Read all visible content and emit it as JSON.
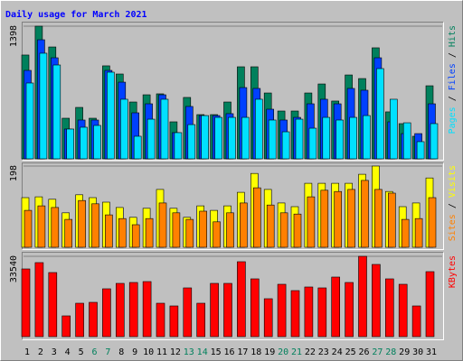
{
  "chart_data": [
    {
      "type": "bar",
      "title": "Daily usage for March 2021",
      "categories": [
        "1",
        "2",
        "3",
        "4",
        "5",
        "6",
        "7",
        "8",
        "9",
        "10",
        "11",
        "12",
        "13",
        "14",
        "15",
        "16",
        "17",
        "18",
        "19",
        "20",
        "21",
        "22",
        "23",
        "24",
        "25",
        "26",
        "27",
        "28",
        "29",
        "30",
        "31"
      ],
      "category_colors": [
        "#000000",
        "#000000",
        "#000000",
        "#000000",
        "#000000",
        "#00805c",
        "#00805c",
        "#000000",
        "#000000",
        "#000000",
        "#000000",
        "#000000",
        "#00805c",
        "#00805c",
        "#000000",
        "#000000",
        "#000000",
        "#000000",
        "#000000",
        "#00805c",
        "#00805c",
        "#000000",
        "#000000",
        "#000000",
        "#000000",
        "#000000",
        "#00805c",
        "#00805c",
        "#000000",
        "#000000",
        "#000000"
      ],
      "series": [
        {
          "name": "Hits",
          "color": "#00805c",
          "values": [
            1094,
            1398,
            1179,
            428,
            542,
            428,
            980,
            894,
            599,
            675,
            685,
            390,
            647,
            466,
            466,
            599,
            970,
            970,
            694,
            504,
            504,
            694,
            789,
            609,
            884,
            846,
            1170,
            495,
            371,
            238,
            770
          ]
        },
        {
          "name": "Files",
          "color": "#0040ff",
          "values": [
            932,
            1255,
            1065,
            314,
            409,
            409,
            932,
            808,
            485,
            580,
            675,
            276,
            552,
            456,
            456,
            476,
            751,
            742,
            523,
            409,
            437,
            580,
            628,
            580,
            742,
            723,
            1065,
            390,
            266,
            266,
            580
          ]
        },
        {
          "name": "Pages",
          "color": "#00e0ff",
          "values": [
            799,
            1113,
            989,
            314,
            333,
            352,
            913,
            628,
            238,
            418,
            628,
            276,
            361,
            456,
            437,
            437,
            437,
            628,
            409,
            285,
            418,
            323,
            437,
            409,
            437,
            456,
            951,
            628,
            380,
            181,
            371
          ]
        }
      ],
      "ylim": [
        0,
        1398
      ],
      "yticks": [
        1398
      ]
    },
    {
      "type": "bar",
      "series": [
        {
          "name": "Visits",
          "color": "#ffff00",
          "values": [
            121,
            123,
            117,
            84,
            128,
            121,
            110,
            97,
            73,
            95,
            141,
            95,
            73,
            101,
            90,
            101,
            134,
            180,
            141,
            108,
            99,
            156,
            156,
            156,
            156,
            178,
            198,
            136,
            99,
            108,
            169
          ]
        },
        {
          "name": "Sites",
          "color": "#ff8000",
          "values": [
            90,
            101,
            97,
            68,
            114,
            106,
            79,
            70,
            55,
            70,
            108,
            84,
            68,
            88,
            62,
            84,
            108,
            145,
            103,
            84,
            81,
            123,
            139,
            136,
            141,
            163,
            141,
            132,
            68,
            70,
            121
          ]
        }
      ],
      "ylim": [
        0,
        198
      ],
      "yticks": [
        198
      ]
    },
    {
      "type": "bar",
      "series": [
        {
          "name": "KBytes",
          "color": "#ff0000",
          "values": [
            28268,
            30906,
            26760,
            8669,
            13945,
            14322,
            19976,
            22237,
            22614,
            22991,
            13945,
            12815,
            20353,
            13945,
            22237,
            22237,
            31283,
            24122,
            15830,
            21860,
            19222,
            20730,
            20353,
            24875,
            22614,
            33540,
            30152,
            24122,
            21860,
            12815,
            27137
          ]
        }
      ],
      "ylim": [
        0,
        33540
      ],
      "yticks": [
        33540
      ]
    }
  ]
}
